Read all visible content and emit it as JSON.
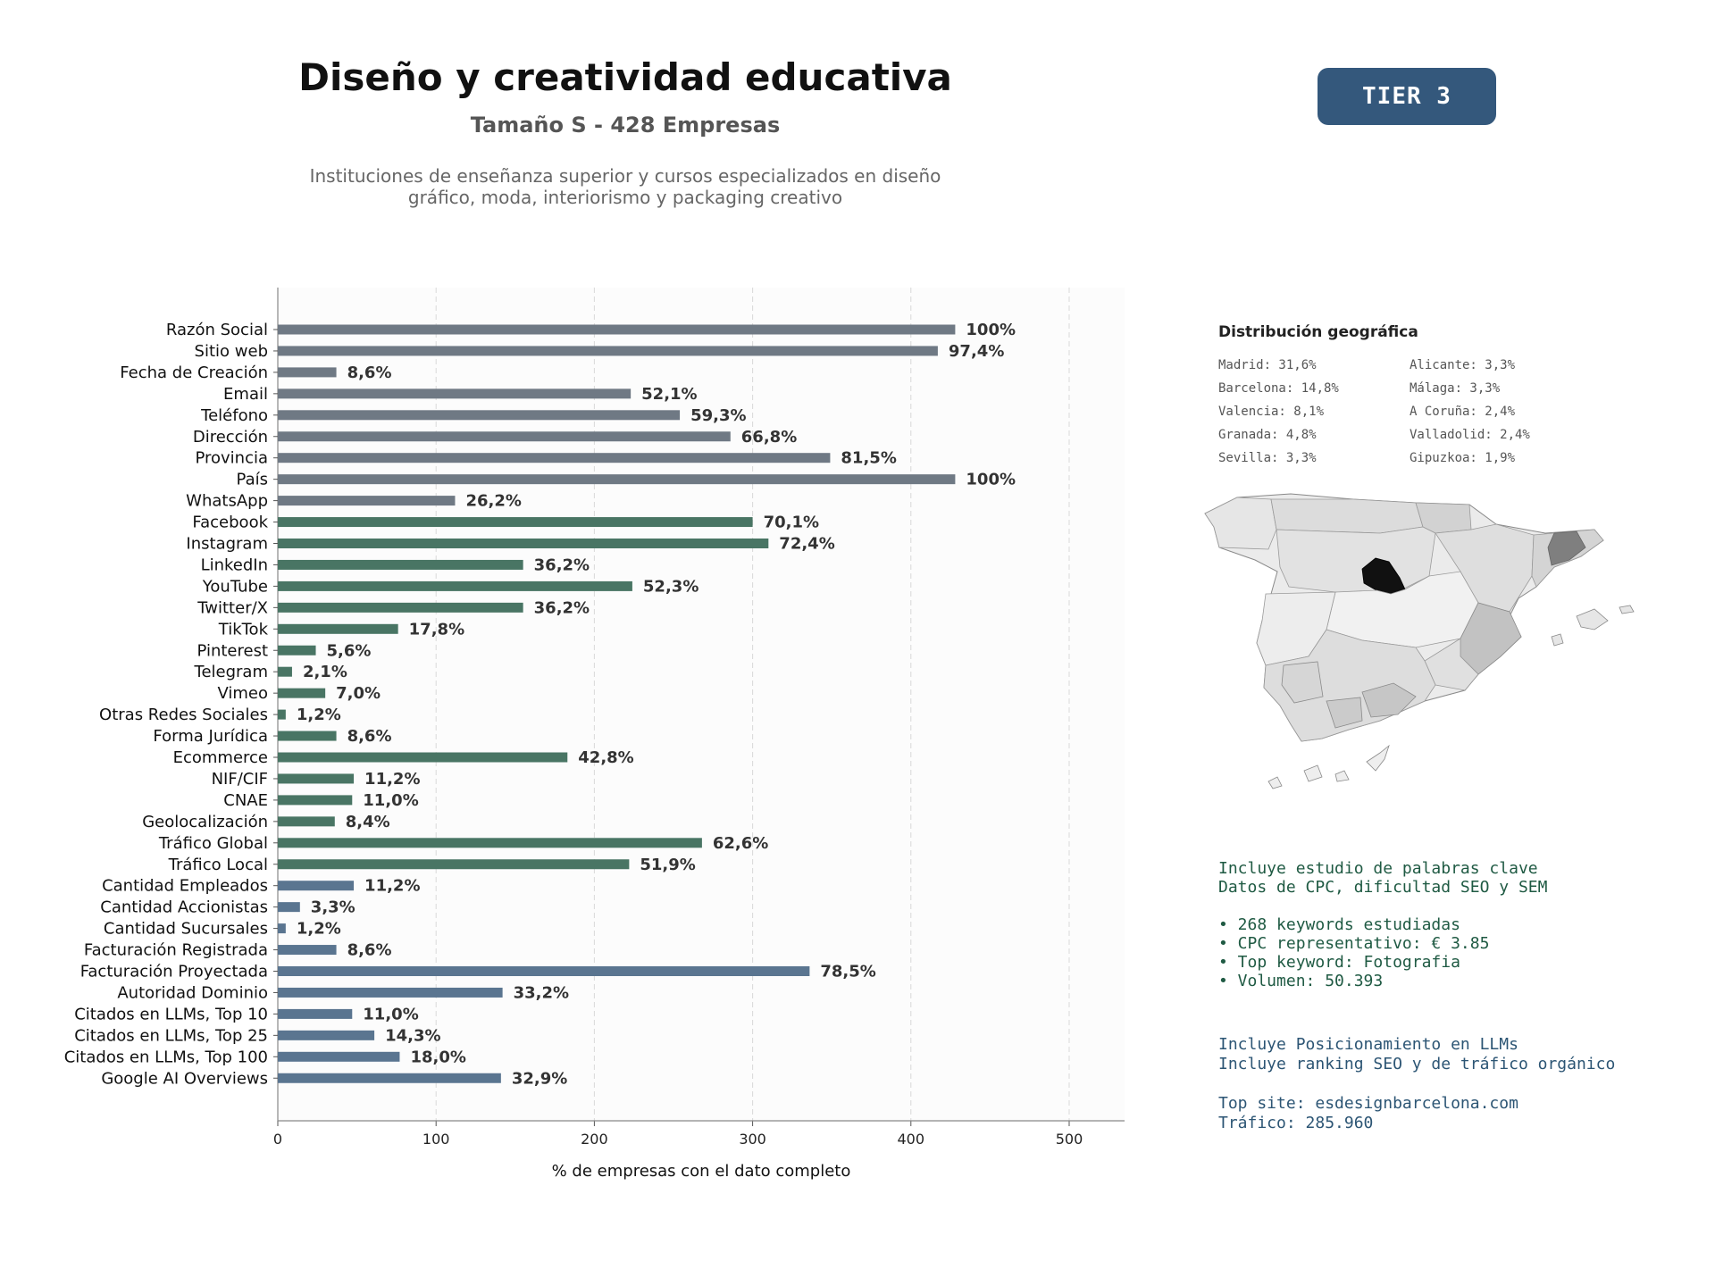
{
  "header": {
    "title": "Diseño y creatividad educativa",
    "subtitle": "Tamaño S - 428 Empresas",
    "description_line1": "Instituciones de enseñanza superior y cursos especializados en diseño",
    "description_line2": "gráfico, moda, interiorismo y packaging creativo",
    "tier_badge": "TIER 3"
  },
  "colors": {
    "gray": "#6f7984",
    "green": "#497564",
    "blue": "#5a7590",
    "tier_bg": "#34587c",
    "madrid": "#111111",
    "keywords_text": "#1f5a43",
    "llm_text": "#2c5574"
  },
  "chart_data": {
    "type": "bar",
    "orientation": "horizontal",
    "xlabel": "% de empresas con el dato completo",
    "xlim": [
      0,
      535
    ],
    "xticks": [
      0,
      100,
      200,
      300,
      400,
      500
    ],
    "grid": "vertical dashed",
    "categories": [
      "Razón Social",
      "Sitio web",
      "Fecha de Creación",
      "Email",
      "Teléfono",
      "Dirección",
      "Provincia",
      "País",
      "WhatsApp",
      "Facebook",
      "Instagram",
      "LinkedIn",
      "YouTube",
      "Twitter/X",
      "TikTok",
      "Pinterest",
      "Telegram",
      "Vimeo",
      "Otras Redes Sociales",
      "Forma Jurídica",
      "Ecommerce",
      "NIF/CIF",
      "CNAE",
      "Geolocalización",
      "Tráfico Global",
      "Tráfico Local",
      "Cantidad Empleados",
      "Cantidad Accionistas",
      "Cantidad Sucursales",
      "Facturación Registrada",
      "Facturación Proyectada",
      "Autoridad Dominio",
      "Citados en LLMs, Top 10",
      "Citados en LLMs, Top 25",
      "Citados en LLMs, Top 100",
      "Google AI Overviews"
    ],
    "values": [
      428,
      417,
      37,
      223,
      254,
      286,
      349,
      428,
      112,
      300,
      310,
      155,
      224,
      155,
      76,
      24,
      9,
      30,
      5,
      37,
      183,
      48,
      47,
      36,
      268,
      222,
      48,
      14,
      5,
      37,
      336,
      142,
      47,
      61,
      77,
      141
    ],
    "labels": [
      "100%",
      "97,4%",
      "8,6%",
      "52,1%",
      "59,3%",
      "66,8%",
      "81,5%",
      "100%",
      "26,2%",
      "70,1%",
      "72,4%",
      "36,2%",
      "52,3%",
      "36,2%",
      "17,8%",
      "5,6%",
      "2,1%",
      "7,0%",
      "1,2%",
      "8,6%",
      "42,8%",
      "11,2%",
      "11,0%",
      "8,4%",
      "62,6%",
      "51,9%",
      "11,2%",
      "3,3%",
      "1,2%",
      "8,6%",
      "78,5%",
      "33,2%",
      "11,0%",
      "14,3%",
      "18,0%",
      "32,9%"
    ],
    "groups": [
      "gray",
      "gray",
      "gray",
      "gray",
      "gray",
      "gray",
      "gray",
      "gray",
      "gray",
      "green",
      "green",
      "green",
      "green",
      "green",
      "green",
      "green",
      "green",
      "green",
      "green",
      "green",
      "green",
      "green",
      "green",
      "green",
      "green",
      "green",
      "blue",
      "blue",
      "blue",
      "blue",
      "blue",
      "blue",
      "blue",
      "blue",
      "blue",
      "blue"
    ]
  },
  "geo": {
    "title": "Distribución geográfica",
    "items": [
      "Madrid: 31,6%",
      "Alicante: 3,3%",
      "Barcelona: 14,8%",
      "Málaga: 3,3%",
      "Valencia: 8,1%",
      "A Coruña: 2,4%",
      "Granada: 4,8%",
      "Valladolid: 2,4%",
      "Sevilla: 3,3%",
      "Gipuzkoa: 1,9%"
    ]
  },
  "keywords": {
    "line1": "Incluye estudio de palabras clave",
    "line2": "Datos de CPC, dificultad SEO y SEM",
    "bullet1": "• 268 keywords estudiadas",
    "bullet2": "• CPC representativo: € 3.85",
    "bullet3": "• Top keyword: Fotografia",
    "bullet4": "• Volumen: 50.393"
  },
  "llm": {
    "line1": "Incluye Posicionamiento en LLMs",
    "line2": "Incluye ranking SEO y de tráfico orgánico",
    "top_site": "Top site: esdesignbarcelona.com",
    "traffic": "Tráfico: 285.960"
  }
}
